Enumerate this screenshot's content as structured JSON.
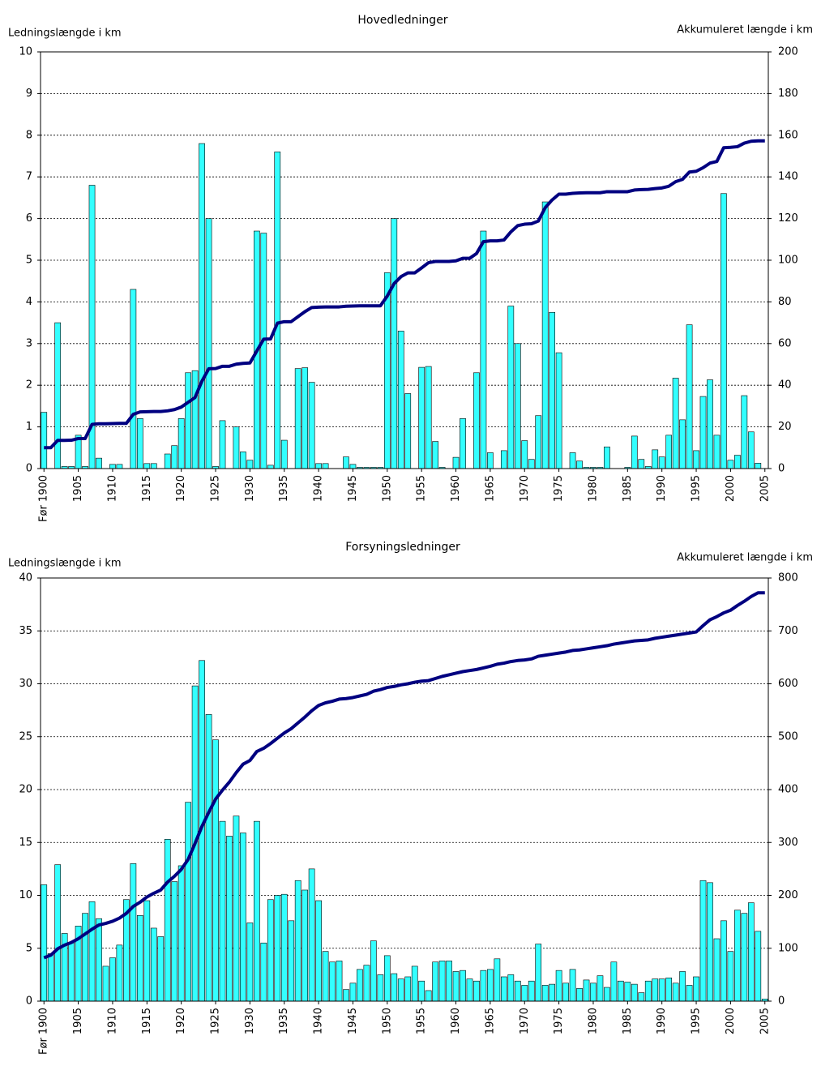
{
  "chart_data": [
    {
      "type": "bar",
      "title": "Hovedledninger",
      "y_label": "Ledningslængde i km",
      "y2_label": "Akkumuleret længde i km",
      "categories": [
        "Før 1900",
        null,
        null,
        null,
        null,
        "1905",
        null,
        null,
        null,
        null,
        "1910",
        null,
        null,
        null,
        null,
        "1915",
        null,
        null,
        null,
        null,
        "1920",
        null,
        null,
        null,
        null,
        "1925",
        null,
        null,
        null,
        null,
        "1930",
        null,
        null,
        null,
        null,
        "1935",
        null,
        null,
        null,
        null,
        "1940",
        null,
        null,
        null,
        null,
        "1945",
        null,
        null,
        null,
        null,
        "1950",
        null,
        null,
        null,
        null,
        "1955",
        null,
        null,
        null,
        null,
        "1960",
        null,
        null,
        null,
        null,
        "1965",
        null,
        null,
        null,
        null,
        "1970",
        null,
        null,
        null,
        null,
        "1975",
        null,
        null,
        null,
        null,
        "1980",
        null,
        null,
        null,
        null,
        "1985",
        null,
        null,
        null,
        null,
        "1990",
        null,
        null,
        null,
        null,
        "1995",
        null,
        null,
        null,
        null,
        "2000",
        null,
        null,
        null,
        null,
        "2005"
      ],
      "series": [
        {
          "type": "bar",
          "color": "#33ffff",
          "values": [
            1.35,
            0,
            3.5,
            0.05,
            0.05,
            0.8,
            0.05,
            6.8,
            0.25,
            0,
            0.1,
            0.1,
            0,
            4.3,
            1.2,
            0.12,
            0.12,
            0,
            0.35,
            0.55,
            1.2,
            2.3,
            2.35,
            7.8,
            6.0,
            0.05,
            1.15,
            0,
            1.0,
            0.4,
            0.2,
            5.7,
            5.65,
            0.08,
            7.6,
            0.68,
            0,
            2.4,
            2.42,
            2.07,
            0.12,
            0.12,
            0,
            0,
            0.28,
            0.1,
            0.03,
            0.03,
            0.03,
            0.03,
            4.7,
            6.0,
            3.3,
            1.8,
            0,
            2.43,
            2.45,
            0.65,
            0.03,
            0,
            0.27,
            1.2,
            0,
            2.3,
            5.7,
            0.38,
            0,
            0.43,
            3.9,
            3.0,
            0.67,
            0.22,
            1.27,
            6.4,
            3.75,
            2.78,
            0,
            0.38,
            0.18,
            0.03,
            0.03,
            0.03,
            0.52,
            0,
            0,
            0.03,
            0.78,
            0.22,
            0.05,
            0.45,
            0.28,
            0.8,
            2.17,
            1.17,
            3.45,
            0.43,
            1.73,
            2.13,
            0.8,
            6.6,
            0.2,
            0.32,
            1.75,
            0.88,
            0.13,
            0
          ]
        },
        {
          "type": "line",
          "axis": "y2",
          "color": "#000080",
          "values": [
            10,
            10,
            13.5,
            13.5,
            13.6,
            14.4,
            14.4,
            21.2,
            21.5,
            21.5,
            21.6,
            21.7,
            21.7,
            26,
            27.2,
            27.3,
            27.4,
            27.4,
            27.7,
            28.3,
            29.5,
            31.8,
            34.1,
            41.9,
            47.9,
            48,
            49.1,
            49.1,
            50.1,
            50.5,
            50.7,
            56.4,
            62.1,
            62.2,
            69.8,
            70.5,
            70.5,
            72.9,
            75.3,
            77.3,
            77.5,
            77.6,
            77.6,
            77.6,
            77.9,
            78,
            78.1,
            78.1,
            78.1,
            78.1,
            82.8,
            88.8,
            92.1,
            93.9,
            93.9,
            96.3,
            98.8,
            99.4,
            99.4,
            99.4,
            99.7,
            100.9,
            100.9,
            103.2,
            108.9,
            109.3,
            109.3,
            109.7,
            113.6,
            116.6,
            117.3,
            117.5,
            118.8,
            125.2,
            128.9,
            131.7,
            131.7,
            132.1,
            132.3,
            132.4,
            132.4,
            132.4,
            132.9,
            132.9,
            132.9,
            132.9,
            133.7,
            133.9,
            134,
            134.4,
            134.7,
            135.5,
            137.7,
            138.8,
            142.3,
            142.7,
            144.4,
            146.6,
            147.4,
            154,
            154.2,
            154.5,
            156.2,
            157.1,
            157.3,
            157.3
          ]
        }
      ],
      "ylim": [
        0,
        10
      ],
      "yticks": [
        0,
        1,
        2,
        3,
        4,
        5,
        6,
        7,
        8,
        9,
        10
      ],
      "y2lim": [
        0,
        200
      ],
      "y2ticks": [
        0,
        20,
        40,
        60,
        80,
        100,
        120,
        140,
        160,
        180,
        200
      ],
      "grid": true
    },
    {
      "type": "bar",
      "title": "Forsyningsledninger",
      "y_label": "Ledningslængde i km",
      "y2_label": "Akkumuleret længde i km",
      "categories": [
        "Før 1900",
        null,
        null,
        null,
        null,
        "1905",
        null,
        null,
        null,
        null,
        "1910",
        null,
        null,
        null,
        null,
        "1915",
        null,
        null,
        null,
        null,
        "1920",
        null,
        null,
        null,
        null,
        "1925",
        null,
        null,
        null,
        null,
        "1930",
        null,
        null,
        null,
        null,
        "1935",
        null,
        null,
        null,
        null,
        "1940",
        null,
        null,
        null,
        null,
        "1945",
        null,
        null,
        null,
        null,
        "1950",
        null,
        null,
        null,
        null,
        "1955",
        null,
        null,
        null,
        null,
        "1960",
        null,
        null,
        null,
        null,
        "1965",
        null,
        null,
        null,
        null,
        "1970",
        null,
        null,
        null,
        null,
        "1975",
        null,
        null,
        null,
        null,
        "1980",
        null,
        null,
        null,
        null,
        "1985",
        null,
        null,
        null,
        null,
        "1990",
        null,
        null,
        null,
        null,
        "1995",
        null,
        null,
        null,
        null,
        "2000",
        null,
        null,
        null,
        null,
        "2005"
      ],
      "series": [
        {
          "type": "bar",
          "color": "#33ffff",
          "values": [
            11,
            4.5,
            12.9,
            6.4,
            5.5,
            7.1,
            8.3,
            9.4,
            7.8,
            3.3,
            4.1,
            5.3,
            9.6,
            13,
            8.1,
            9.5,
            6.9,
            6.1,
            15.3,
            11.3,
            12.8,
            18.8,
            29.8,
            32.2,
            27.1,
            24.7,
            17,
            15.6,
            17.5,
            15.9,
            7.4,
            17,
            5.5,
            9.6,
            10,
            10.1,
            7.6,
            11.4,
            10.5,
            12.5,
            9.5,
            4.7,
            3.7,
            3.8,
            1.1,
            1.7,
            3,
            3.4,
            5.7,
            2.5,
            4.3,
            2.6,
            2.1,
            2.3,
            3.3,
            1.9,
            1,
            3.7,
            3.8,
            3.8,
            2.8,
            2.9,
            2.1,
            1.9,
            2.9,
            3,
            4,
            2.3,
            2.5,
            1.9,
            1.5,
            1.9,
            5.4,
            1.5,
            1.6,
            2.9,
            1.7,
            3,
            1.2,
            2,
            1.7,
            2.4,
            1.3,
            3.7,
            1.9,
            1.8,
            1.6,
            0.8,
            1.9,
            2.1,
            2.1,
            2.2,
            1.7,
            2.8,
            1.5,
            2.3,
            11.4,
            11.2,
            5.9,
            7.6,
            4.7,
            8.6,
            8.3,
            9.3,
            6.6,
            0.2
          ]
        },
        {
          "type": "line",
          "axis": "y2",
          "color": "#000080",
          "values": [
            82,
            87,
            99,
            106,
            111,
            118,
            127,
            136,
            144,
            147,
            151,
            157,
            166,
            179,
            187,
            197,
            204,
            210,
            225,
            236,
            249,
            268,
            298,
            330,
            357,
            382,
            399,
            414,
            432,
            448,
            455,
            472,
            478,
            487,
            497,
            507,
            515,
            526,
            537,
            549,
            559,
            564,
            567,
            571,
            572,
            574,
            577,
            580,
            586,
            589,
            593,
            595,
            598,
            600,
            603,
            605,
            606,
            610,
            614,
            617,
            620,
            623,
            625,
            627,
            630,
            633,
            637,
            639,
            642,
            644,
            645,
            647,
            652,
            654,
            656,
            658,
            660,
            663,
            664,
            666,
            668,
            670,
            672,
            675,
            677,
            679,
            681,
            682,
            683,
            686,
            688,
            690,
            692,
            694,
            696,
            698,
            710,
            721,
            727,
            734,
            739,
            748,
            756,
            765,
            772,
            772
          ]
        }
      ],
      "ylim": [
        0,
        40
      ],
      "yticks": [
        0,
        5,
        10,
        15,
        20,
        25,
        30,
        35,
        40
      ],
      "y2lim": [
        0,
        800
      ],
      "y2ticks": [
        0,
        100,
        200,
        300,
        400,
        500,
        600,
        700,
        800
      ],
      "grid": true
    }
  ]
}
